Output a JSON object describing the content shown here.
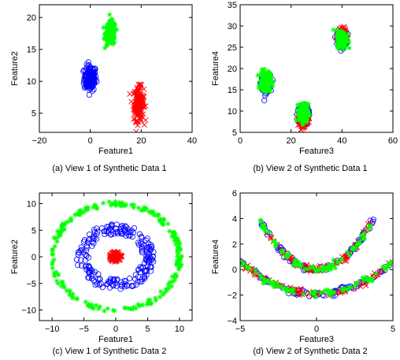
{
  "colors": {
    "blue": "#0000ff",
    "red": "#ff0000",
    "green": "#00ff00"
  },
  "chart_data": [
    {
      "type": "scatter",
      "caption": "(a) View 1 of Synthetic Data 1",
      "xlabel": "Feature1",
      "ylabel": "Feature2",
      "xlim": [
        -20,
        40
      ],
      "ylim": [
        2,
        22
      ],
      "xticks": [
        -20,
        0,
        20,
        40
      ],
      "yticks": [
        5,
        10,
        15,
        20
      ],
      "xtick_labels": [
        "−20",
        "0",
        "20",
        "40"
      ],
      "ytick_labels": [
        "5",
        "10",
        "15",
        "20"
      ],
      "series": [
        {
          "marker": "o",
          "color": "#0000ff",
          "clusters": [
            {
              "cx": 0,
              "cy": 10.5,
              "sx": 1.2,
              "sy": 1.0
            }
          ]
        },
        {
          "marker": "x",
          "color": "#ff0000",
          "clusters": [
            {
              "cx": 19,
              "cy": 6.5,
              "sx": 1.0,
              "sy": 1.3
            }
          ]
        },
        {
          "marker": "*",
          "color": "#00ff00",
          "clusters": [
            {
              "cx": 8,
              "cy": 17.5,
              "sx": 1.0,
              "sy": 0.9
            }
          ]
        }
      ]
    },
    {
      "type": "scatter",
      "caption": "(b) View 2 of Synthetic Data 1",
      "xlabel": "Feature3",
      "ylabel": "Feature4",
      "xlim": [
        0,
        60
      ],
      "ylim": [
        5,
        35
      ],
      "xticks": [
        0,
        20,
        40,
        60
      ],
      "yticks": [
        5,
        10,
        15,
        20,
        25,
        30,
        35
      ],
      "xtick_labels": [
        "0",
        "20",
        "40",
        "60"
      ],
      "ytick_labels": [
        "5",
        "10",
        "15",
        "20",
        "25",
        "30",
        "35"
      ],
      "series": [
        {
          "marker": "o",
          "color": "#0000ff",
          "clusters": [
            {
              "cx": 10,
              "cy": 16.5,
              "sx": 0.9,
              "sy": 1.0
            },
            {
              "cx": 25,
              "cy": 9,
              "sx": 0.9,
              "sy": 1.1
            },
            {
              "cx": 40,
              "cy": 27,
              "sx": 0.9,
              "sy": 0.9
            }
          ]
        },
        {
          "marker": "x",
          "color": "#ff0000",
          "clusters": [
            {
              "cx": 25,
              "cy": 8.5,
              "sx": 0.8,
              "sy": 1.0
            },
            {
              "cx": 40,
              "cy": 27.5,
              "sx": 0.8,
              "sy": 0.8
            }
          ]
        },
        {
          "marker": "*",
          "color": "#00ff00",
          "clusters": [
            {
              "cx": 10,
              "cy": 17,
              "sx": 1.0,
              "sy": 1.1
            },
            {
              "cx": 25,
              "cy": 9.5,
              "sx": 0.9,
              "sy": 1.1
            },
            {
              "cx": 40,
              "cy": 27,
              "sx": 1.0,
              "sy": 1.0
            }
          ]
        }
      ]
    },
    {
      "type": "scatter",
      "caption": "(c) View 1 of Synthetic Data 2",
      "xlabel": "Feature1",
      "ylabel": "Feature2",
      "xlim": [
        -12,
        12
      ],
      "ylim": [
        -12,
        12
      ],
      "xticks": [
        -10,
        -5,
        0,
        5,
        10
      ],
      "yticks": [
        -10,
        -5,
        0,
        5,
        10
      ],
      "xtick_labels": [
        "−10",
        "−5",
        "0",
        "5",
        "10"
      ],
      "ytick_labels": [
        "−10",
        "−5",
        "0",
        "5",
        "10"
      ],
      "series": [
        {
          "marker": "o",
          "color": "#0000ff",
          "rings": [
            {
              "r_min": 4.2,
              "r_max": 6.2
            }
          ]
        },
        {
          "marker": "x",
          "color": "#ff0000",
          "rings": [
            {
              "r_min": 0,
              "r_max": 1.0
            }
          ]
        },
        {
          "marker": "*",
          "color": "#00ff00",
          "rings": [
            {
              "r_min": 9.6,
              "r_max": 10.4
            }
          ]
        }
      ]
    },
    {
      "type": "scatter",
      "caption": "(d) View 2 of Synthetic Data 2",
      "xlabel": "Feature3",
      "ylabel": "Feature4",
      "xlim": [
        -5,
        5
      ],
      "ylim": [
        -4,
        6
      ],
      "xticks": [
        -5,
        0,
        5
      ],
      "yticks": [
        -4,
        -2,
        0,
        2,
        4,
        6
      ],
      "xtick_labels": [
        "−5",
        "0",
        "5"
      ],
      "ytick_labels": [
        "−4",
        "−2",
        "0",
        "2",
        "4",
        "6"
      ],
      "curves": [
        {
          "equation": "y = 0.28 x^2",
          "x_range": [
            -3.7,
            3.7
          ]
        },
        {
          "equation": "y = 0.1 x^2 - 1.9",
          "x_range": [
            -5,
            5
          ]
        }
      ],
      "series": [
        {
          "marker": "o",
          "color": "#0000ff"
        },
        {
          "marker": "x",
          "color": "#ff0000"
        },
        {
          "marker": "*",
          "color": "#00ff00"
        }
      ]
    }
  ]
}
